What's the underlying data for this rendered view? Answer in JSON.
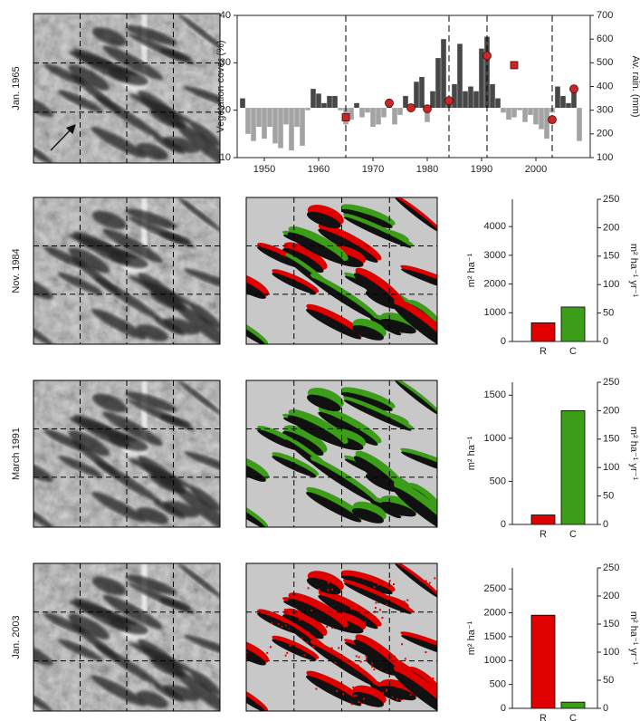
{
  "image_labels": [
    "Jan. 1965",
    "Nov. 1984",
    "March 1991",
    "Jan. 2003"
  ],
  "chart_data": [
    {
      "type": "combo",
      "ylabel": "Vegetation cover (%)",
      "y2label": "Av. rain. (mm)",
      "xlim": [
        1945,
        2010
      ],
      "xticks": [
        1950,
        1960,
        1970,
        1980,
        1990,
        2000
      ],
      "ylim": [
        10,
        40
      ],
      "yticks": [
        10,
        20,
        30,
        40
      ],
      "y2lim": [
        100,
        700
      ],
      "y2ticks": [
        100,
        200,
        300,
        400,
        500,
        600,
        700
      ],
      "vlines": [
        1965,
        1984,
        1991,
        2003
      ],
      "bars": {
        "axis": "y2",
        "base": 310,
        "colors": [
          "#474747",
          "#a3a3a3"
        ],
        "x": [
          1946,
          1947,
          1948,
          1949,
          1950,
          1951,
          1952,
          1953,
          1954,
          1955,
          1956,
          1957,
          1958,
          1959,
          1960,
          1961,
          1962,
          1963,
          1964,
          1965,
          1966,
          1967,
          1968,
          1969,
          1970,
          1971,
          1972,
          1973,
          1974,
          1975,
          1976,
          1977,
          1978,
          1979,
          1980,
          1981,
          1982,
          1983,
          1984,
          1985,
          1986,
          1987,
          1988,
          1989,
          1990,
          1991,
          1992,
          1993,
          1994,
          1995,
          1996,
          1997,
          1998,
          1999,
          2000,
          2001,
          2002,
          2003,
          2004,
          2005,
          2006,
          2007,
          2008
        ],
        "values": [
          350,
          200,
          170,
          230,
          180,
          230,
          160,
          140,
          240,
          130,
          230,
          150,
          300,
          390,
          370,
          330,
          360,
          360,
          300,
          240,
          260,
          330,
          270,
          290,
          230,
          240,
          270,
          340,
          240,
          280,
          360,
          300,
          420,
          440,
          250,
          380,
          520,
          600,
          330,
          410,
          580,
          380,
          400,
          380,
          560,
          610,
          410,
          350,
          290,
          260,
          270,
          300,
          250,
          280,
          240,
          220,
          180,
          290,
          400,
          360,
          330,
          380,
          170
        ]
      },
      "points": {
        "color": "#c62828",
        "x": [
          1965,
          1973,
          1977,
          1980,
          1984,
          1991,
          1996,
          2003,
          2007
        ],
        "values": [
          18.5,
          21.5,
          20.5,
          20.3,
          22,
          31.5,
          29.5,
          18,
          24.5
        ],
        "markers": [
          "square",
          "circle",
          "circle",
          "circle",
          "circle",
          "circle",
          "square",
          "circle",
          "circle"
        ]
      }
    },
    {
      "type": "bar",
      "categories": [
        "R",
        "C"
      ],
      "values": [
        650,
        1200
      ],
      "colors": [
        "#e00000",
        "#3c9e18"
      ],
      "ylabel": "m² ha⁻¹",
      "ylim": [
        0,
        4950
      ],
      "yticks": [
        0,
        1000,
        2000,
        3000,
        4000
      ],
      "y2label": "m² ha⁻¹ yr⁻¹",
      "y2lim": [
        0,
        250
      ],
      "y2ticks": [
        0,
        50,
        100,
        150,
        200,
        250
      ]
    },
    {
      "type": "bar",
      "categories": [
        "R",
        "C"
      ],
      "values": [
        110,
        1320
      ],
      "colors": [
        "#e00000",
        "#3c9e18"
      ],
      "ylabel": "m² ha⁻¹",
      "ylim": [
        0,
        1650
      ],
      "yticks": [
        0,
        500,
        1000,
        1500
      ],
      "y2label": "m² ha⁻¹ yr⁻¹",
      "y2lim": [
        0,
        250
      ],
      "y2ticks": [
        0,
        50,
        100,
        150,
        200,
        250
      ]
    },
    {
      "type": "bar",
      "categories": [
        "R",
        "C"
      ],
      "values": [
        1950,
        130
      ],
      "colors": [
        "#e00000",
        "#3c9e18"
      ],
      "ylabel": "m² ha⁻¹",
      "ylim": [
        0,
        2940
      ],
      "yticks": [
        0,
        500,
        1000,
        1500,
        2000,
        2500
      ],
      "y2label": "m² ha⁻¹ yr⁻¹",
      "y2lim": [
        0,
        250
      ],
      "y2ticks": [
        0,
        50,
        100,
        150,
        200,
        250
      ]
    }
  ]
}
